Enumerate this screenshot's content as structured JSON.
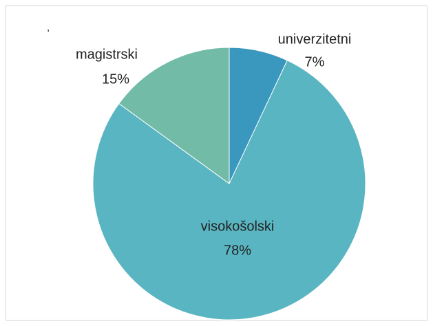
{
  "chart_data": {
    "type": "pie",
    "title": "’",
    "categories": [
      "univerzitetni",
      "visokošolski",
      "magistrski"
    ],
    "values": [
      7,
      78,
      15
    ],
    "value_labels": [
      "7%",
      "78%",
      "15%"
    ],
    "colors": [
      "#3a97bd",
      "#59b5c1",
      "#72bca7"
    ]
  }
}
